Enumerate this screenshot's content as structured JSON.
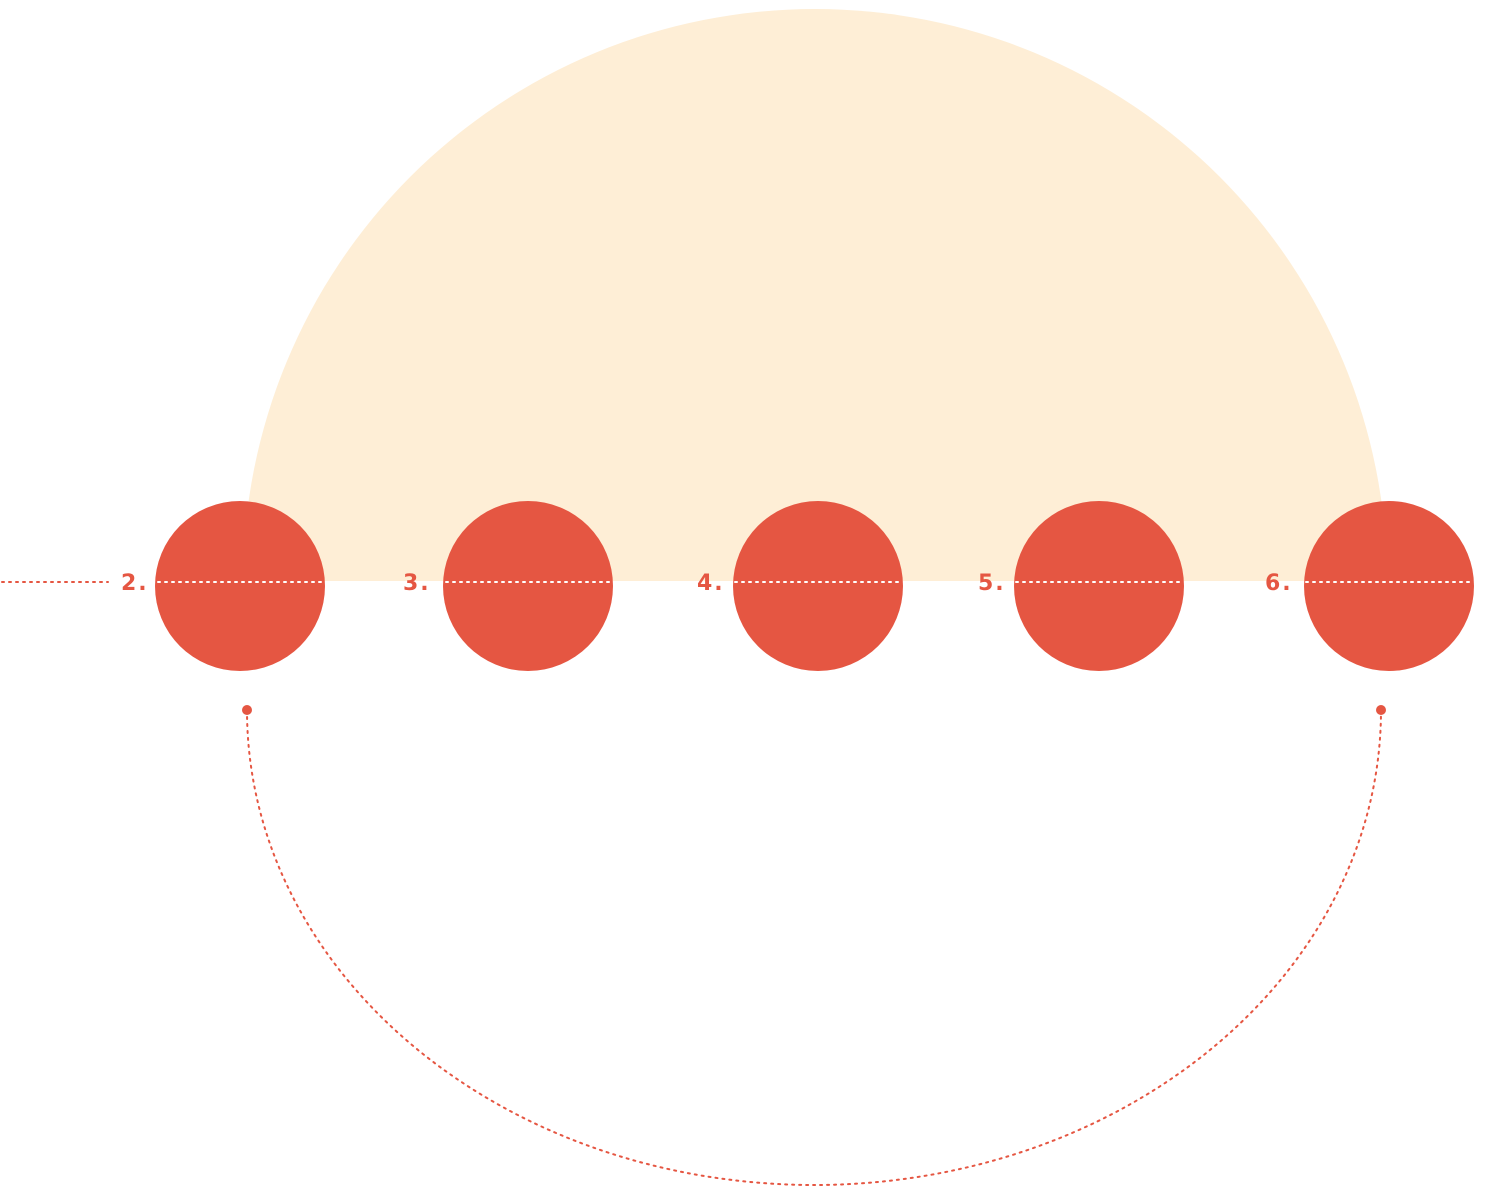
{
  "colors": {
    "background": "#ffffff",
    "arch": "#feeed6",
    "node": "#e55642",
    "accent": "#e55642",
    "dotted_on_node": "#ffffff"
  },
  "steps": [
    {
      "label": "2."
    },
    {
      "label": "3."
    },
    {
      "label": "4."
    },
    {
      "label": "5."
    },
    {
      "label": "6."
    }
  ]
}
